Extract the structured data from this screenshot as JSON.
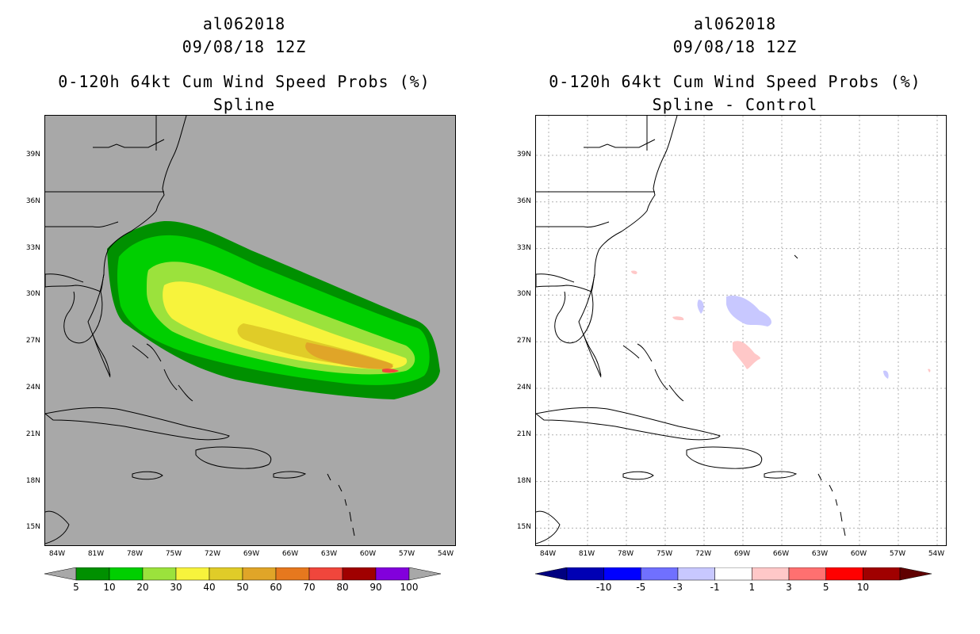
{
  "left": {
    "storm_id": "al062018",
    "datetime": "09/08/18 12Z",
    "title": "0-120h 64kt Cum Wind Speed Probs (%)",
    "subtitle": "Spline",
    "background_color": "#a8a8a8",
    "colorbar": {
      "colors": [
        "#009000",
        "#00cf00",
        "#9be23c",
        "#f7f33c",
        "#e0cc28",
        "#e0a528",
        "#e6781e",
        "#f0463c",
        "#a00000",
        "#8200dc"
      ],
      "labels": [
        "5",
        "10",
        "20",
        "30",
        "40",
        "50",
        "60",
        "70",
        "80",
        "90",
        "100"
      ]
    }
  },
  "right": {
    "storm_id": "al062018",
    "datetime": "09/08/18 12Z",
    "title": "0-120h 64kt Cum Wind Speed Probs (%)",
    "subtitle": "Spline - Control",
    "background_color": "#ffffff",
    "colorbar": {
      "colors": [
        "#0000b4",
        "#0000ff",
        "#7070ff",
        "#c8c8ff",
        "#ffffff",
        "#ffc8c8",
        "#ff7070",
        "#ff0000",
        "#a00000"
      ],
      "labels": [
        "-10",
        "-5",
        "-3",
        "-1",
        "1",
        "3",
        "5",
        "10"
      ]
    }
  },
  "axes": {
    "lat_labels": [
      "39N",
      "36N",
      "33N",
      "30N",
      "27N",
      "24N",
      "21N",
      "18N",
      "15N"
    ],
    "lon_labels": [
      "84W",
      "81W",
      "78W",
      "75W",
      "72W",
      "69W",
      "66W",
      "63W",
      "60W",
      "57W",
      "54W"
    ]
  },
  "probability_contours_percent": [
    5,
    10,
    20,
    30,
    40,
    50,
    70
  ],
  "difference_features": [
    {
      "sign": "negative",
      "category": "-3 to -1",
      "region": "near 29N 68W"
    },
    {
      "sign": "positive",
      "category": "1 to 3",
      "region": "near 26.5N 69W"
    }
  ]
}
